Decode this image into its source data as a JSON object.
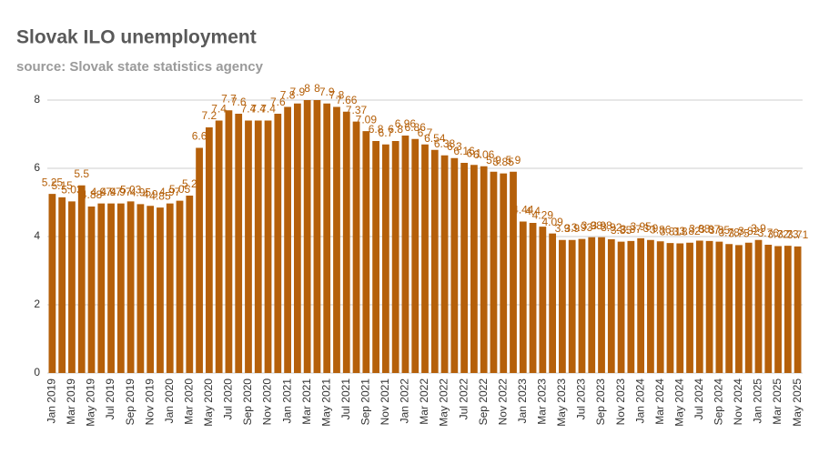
{
  "chart_data": {
    "type": "bar",
    "title": "Slovak ILO unemployment",
    "subtitle": "source: Slovak state statistics agency",
    "categories": [
      "Jan 2019",
      null,
      "Mar 2019",
      null,
      "May 2019",
      null,
      "Jul 2019",
      null,
      "Sep 2019",
      null,
      "Nov 2019",
      null,
      "Jan 2020",
      null,
      "Mar 2020",
      null,
      "May 2020",
      null,
      "Jul 2020",
      null,
      "Sep 2020",
      null,
      "Nov 2020",
      null,
      "Jan 2021",
      null,
      "Mar 2021",
      null,
      "May 2021",
      null,
      "Jul 2021",
      null,
      "Sep 2021",
      null,
      "Nov 2021",
      null,
      "Jan 2022",
      null,
      "Mar 2022",
      null,
      "May 2022",
      null,
      "Jul 2022",
      null,
      "Sep 2022",
      null,
      "Nov 2022",
      null,
      "Jan 2023",
      null,
      "Mar 2023",
      null,
      "May 2023",
      null,
      "Jul 2023",
      null,
      "Sep 2023",
      null,
      "Nov 2023",
      null,
      "Jan 2024",
      null,
      "Mar 2024",
      null,
      "May 2024",
      null,
      "Jul 2024",
      null,
      "Sep 2024",
      null,
      "Nov 2024",
      null,
      "Jan 2025",
      null,
      "Mar 2025",
      null,
      "May 2025"
    ],
    "values": [
      5.25,
      5.15,
      5.03,
      5.5,
      4.88,
      4.97,
      4.97,
      4.97,
      5.03,
      4.95,
      4.9,
      4.85,
      4.97,
      5.05,
      5.2,
      6.6,
      7.2,
      7.4,
      7.7,
      7.6,
      7.4,
      7.4,
      7.4,
      7.6,
      7.8,
      7.9,
      8.0,
      8.0,
      7.9,
      7.8,
      7.66,
      7.37,
      7.09,
      6.8,
      6.7,
      6.8,
      6.96,
      6.86,
      6.7,
      6.54,
      6.38,
      6.3,
      6.16,
      6.1,
      6.06,
      5.9,
      5.85,
      5.9,
      4.44,
      4.4,
      4.29,
      4.09,
      3.9,
      3.9,
      3.93,
      3.98,
      3.98,
      3.92,
      3.85,
      3.87,
      3.95,
      3.9,
      3.86,
      3.81,
      3.8,
      3.82,
      3.88,
      3.87,
      3.85,
      3.78,
      3.75,
      3.82,
      3.9,
      3.76,
      3.72,
      3.73,
      3.71
    ],
    "color": "#b5600a",
    "ylim": [
      0,
      8
    ],
    "yticks": [
      0,
      2,
      4,
      6,
      8
    ],
    "grid": true
  }
}
